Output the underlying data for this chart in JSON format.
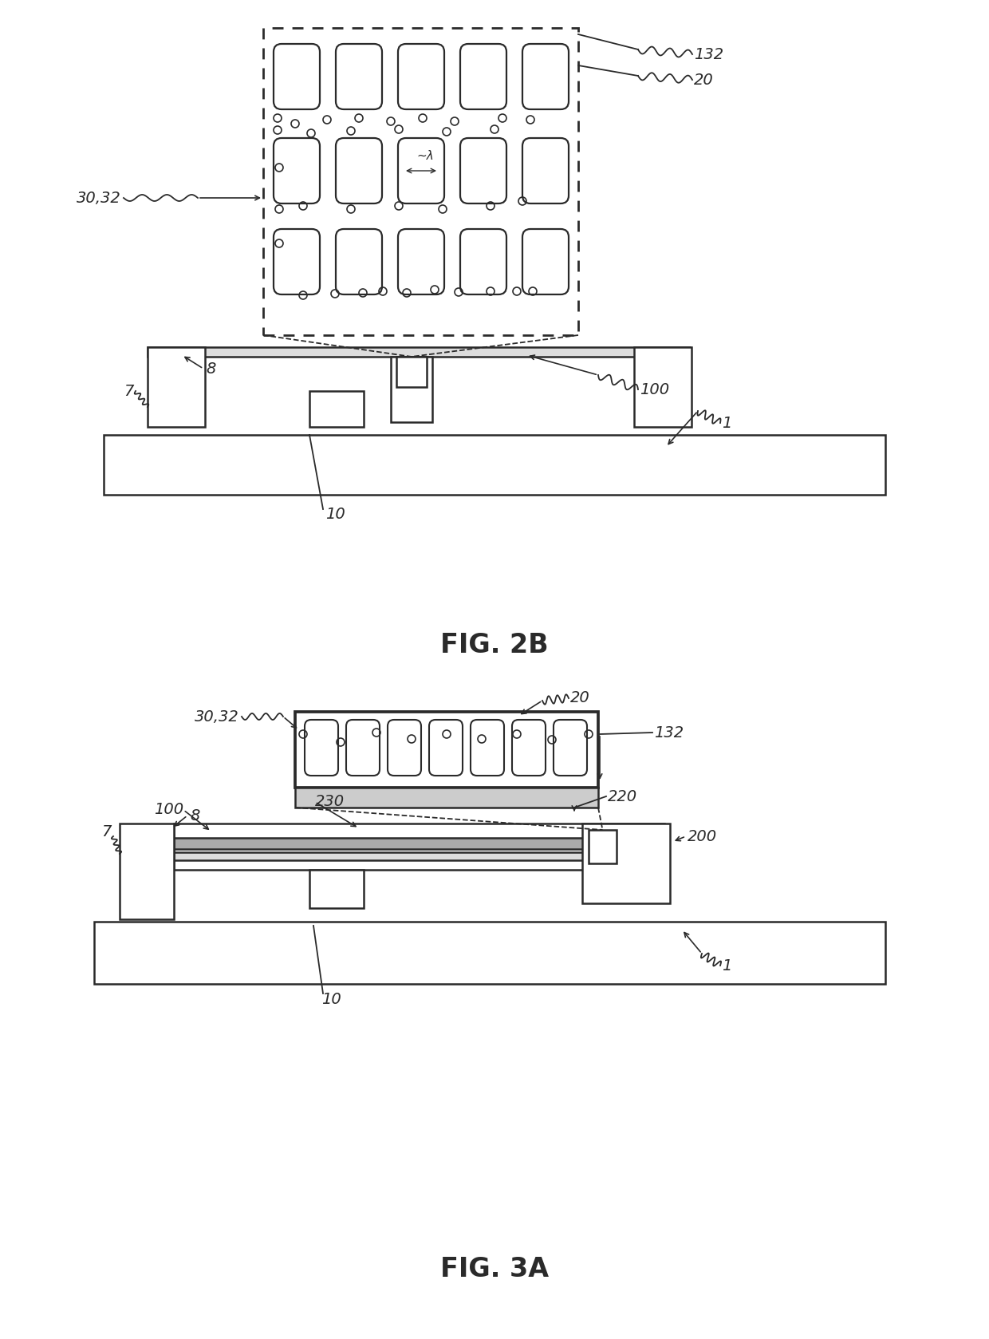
{
  "fig_width": 12.4,
  "fig_height": 16.78,
  "bg_color": "#ffffff",
  "line_color": "#2a2a2a",
  "line_width": 1.8,
  "dashed_lw": 1.3,
  "fig2b_title": "FIG. 2B",
  "fig3a_title": "FIG. 3A",
  "title_fontsize": 24
}
